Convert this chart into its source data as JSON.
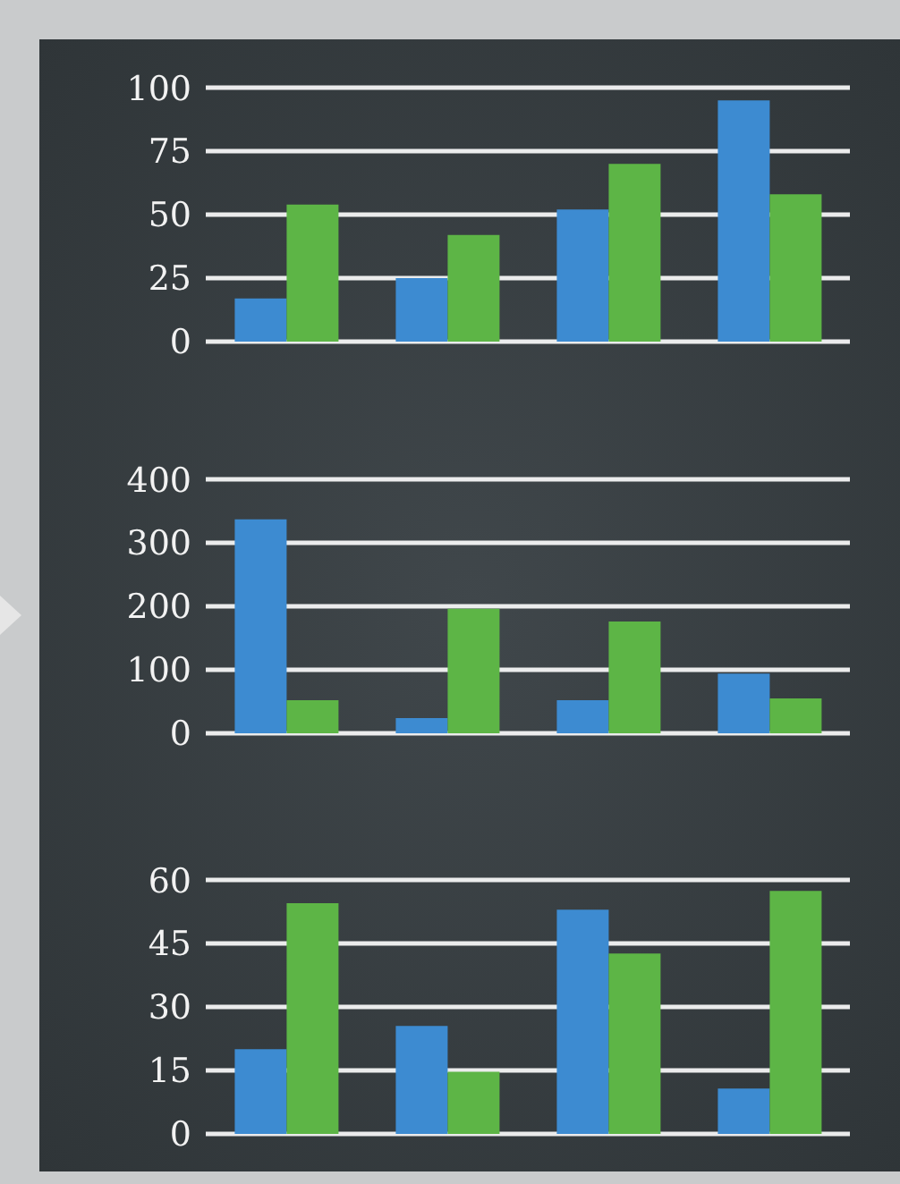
{
  "chart_data": [
    {
      "type": "bar",
      "categories": [
        null,
        null,
        null,
        null
      ],
      "series": [
        {
          "color": "#3d8bd1",
          "values": [
            17,
            25,
            52,
            95
          ]
        },
        {
          "color": "#5db546",
          "values": [
            54,
            42,
            70,
            58
          ]
        }
      ],
      "ylim": [
        0,
        100
      ],
      "yticks": [
        0,
        25,
        50,
        75,
        100
      ],
      "grid": "y",
      "tick_labels": "y"
    },
    {
      "type": "bar",
      "categories": [
        null,
        null,
        null,
        null
      ],
      "series": [
        {
          "color": "#3d8bd1",
          "values": [
            337,
            24,
            52,
            94
          ]
        },
        {
          "color": "#5db546",
          "values": [
            52,
            196,
            176,
            55
          ]
        }
      ],
      "ylim": [
        0,
        400
      ],
      "yticks": [
        0,
        100,
        200,
        300,
        400
      ],
      "grid": "y",
      "tick_labels": "y"
    },
    {
      "type": "bar",
      "categories": [
        null,
        null,
        null,
        null
      ],
      "series": [
        {
          "color": "#3d8bd1",
          "values": [
            20,
            25.5,
            53,
            10.7
          ]
        },
        {
          "color": "#5db546",
          "values": [
            54.5,
            14.7,
            42.6,
            57.4
          ]
        }
      ],
      "ylim": [
        0,
        60
      ],
      "yticks": [
        0,
        15,
        30,
        45,
        60
      ],
      "grid": "y",
      "tick_labels": "y"
    }
  ]
}
